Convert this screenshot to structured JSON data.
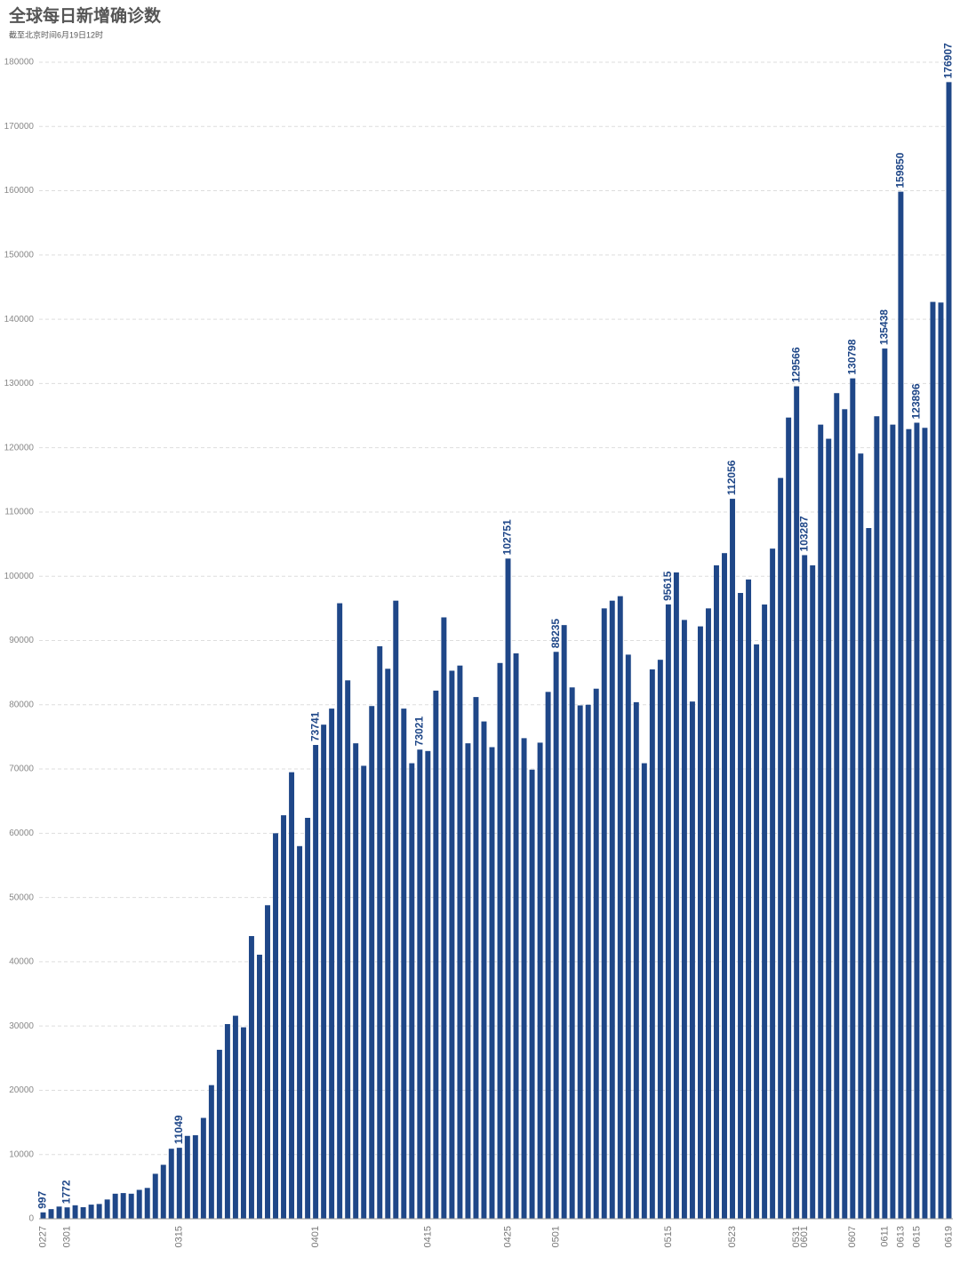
{
  "chart_data": {
    "type": "bar",
    "title": "全球每日新增确诊数",
    "subtitle": "截至北京时间6月19日12时",
    "color": "#1f4788",
    "ylim": [
      0,
      180000
    ],
    "yticks": [
      0,
      10000,
      20000,
      30000,
      40000,
      50000,
      60000,
      70000,
      80000,
      90000,
      100000,
      110000,
      120000,
      130000,
      140000,
      150000,
      160000,
      170000,
      180000
    ],
    "grid": true,
    "categories": [
      "0227",
      null,
      null,
      "0301",
      null,
      null,
      null,
      null,
      null,
      null,
      null,
      null,
      null,
      null,
      null,
      null,
      null,
      "0315",
      null,
      null,
      null,
      null,
      null,
      null,
      null,
      null,
      null,
      null,
      null,
      null,
      null,
      null,
      null,
      null,
      "0401",
      null,
      null,
      null,
      null,
      null,
      null,
      null,
      null,
      null,
      null,
      null,
      null,
      null,
      "0415",
      null,
      null,
      null,
      null,
      null,
      null,
      null,
      null,
      null,
      "0425",
      null,
      null,
      null,
      null,
      null,
      "0501",
      null,
      null,
      null,
      null,
      null,
      null,
      null,
      null,
      null,
      null,
      null,
      null,
      null,
      "0515",
      null,
      null,
      null,
      null,
      null,
      null,
      null,
      "0523",
      null,
      null,
      null,
      null,
      null,
      null,
      null,
      "0531",
      "0601",
      null,
      null,
      null,
      null,
      null,
      "0607",
      null,
      null,
      null,
      "0611",
      null,
      "0613",
      null,
      "0615",
      null,
      null,
      null,
      "0619"
    ],
    "values": [
      997,
      1500,
      1900,
      1772,
      2100,
      1800,
      2200,
      2300,
      3000,
      3900,
      4000,
      3900,
      4500,
      4800,
      7000,
      8400,
      10900,
      11049,
      12900,
      13000,
      15700,
      20800,
      26300,
      30300,
      31600,
      29800,
      44000,
      41100,
      48800,
      60000,
      62800,
      69500,
      58000,
      62400,
      73741,
      76900,
      79400,
      95800,
      83800,
      74000,
      70500,
      79800,
      89100,
      85600,
      96200,
      79400,
      70900,
      73021,
      72800,
      82200,
      93600,
      85300,
      86100,
      74000,
      81200,
      77400,
      73400,
      86500,
      102751,
      88000,
      74800,
      69900,
      74100,
      82000,
      88235,
      92400,
      82700,
      79900,
      80000,
      82500,
      95000,
      96200,
      96900,
      87800,
      80400,
      70900,
      85500,
      87000,
      95615,
      100600,
      93200,
      80500,
      92200,
      95000,
      101700,
      103600,
      112056,
      97400,
      99500,
      89400,
      95600,
      104300,
      115300,
      124700,
      129566,
      103287,
      101700,
      123600,
      121400,
      128500,
      126000,
      130798,
      119100,
      107500,
      124900,
      135438,
      123600,
      159850,
      122900,
      123896,
      123100,
      142700,
      142600,
      176907
    ],
    "value_labels": [
      "997",
      null,
      null,
      "1772",
      null,
      null,
      null,
      null,
      null,
      null,
      null,
      null,
      null,
      null,
      null,
      null,
      null,
      "11049",
      null,
      null,
      null,
      null,
      null,
      null,
      null,
      null,
      null,
      null,
      null,
      null,
      null,
      null,
      null,
      null,
      "73741",
      null,
      null,
      null,
      null,
      null,
      null,
      null,
      null,
      null,
      null,
      null,
      null,
      "73021",
      null,
      null,
      null,
      null,
      null,
      null,
      null,
      null,
      null,
      null,
      "102751",
      null,
      null,
      null,
      null,
      null,
      "88235",
      null,
      null,
      null,
      null,
      null,
      null,
      null,
      null,
      null,
      null,
      null,
      null,
      null,
      "95615",
      null,
      null,
      null,
      null,
      null,
      null,
      null,
      "112056",
      null,
      null,
      null,
      null,
      null,
      null,
      null,
      "129566",
      "103287",
      null,
      null,
      null,
      null,
      null,
      "130798",
      null,
      null,
      null,
      "135438",
      null,
      "159850",
      null,
      "123896",
      null,
      null,
      null,
      "176907"
    ]
  }
}
